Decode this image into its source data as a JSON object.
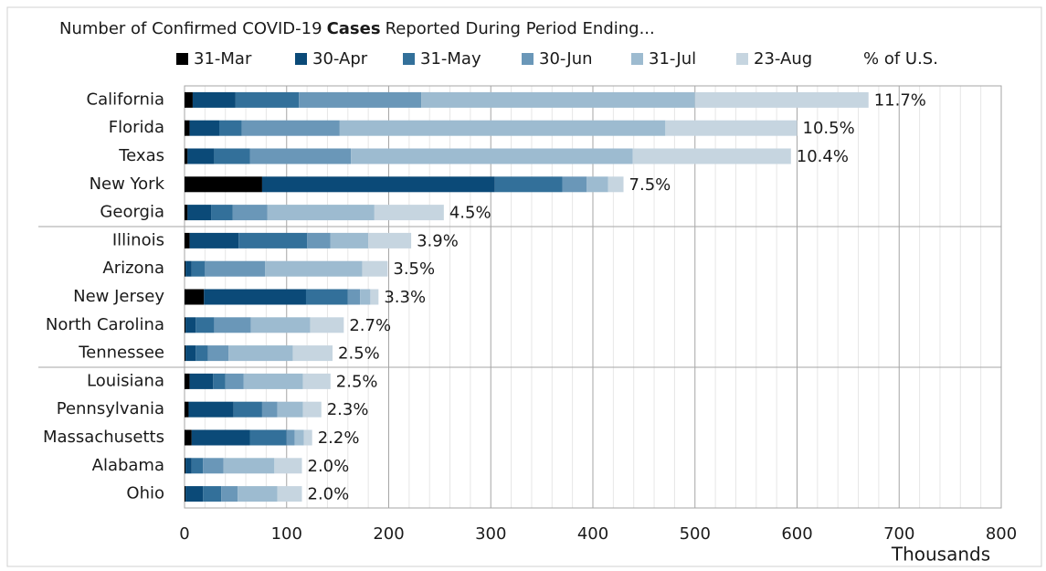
{
  "chart_data": {
    "type": "stacked_bar_horizontal",
    "title": [
      "Number of Confirmed COVID-19",
      "Cases",
      "Reported During Period Ending..."
    ],
    "x_label": "Thousands",
    "categories": [
      "California",
      "Florida",
      "Texas",
      "New York",
      "Georgia",
      "Illinois",
      "Arizona",
      "New Jersey",
      "North Carolina",
      "Tennessee",
      "Louisiana",
      "Pennsylvania",
      "Massachusetts",
      "Alabama",
      "Ohio"
    ],
    "series": [
      {
        "name": "31-Mar",
        "color": "#000000",
        "values": [
          8,
          5,
          3,
          76,
          3,
          5,
          1,
          19,
          1,
          1,
          5,
          4,
          7,
          1,
          1
        ]
      },
      {
        "name": "30-Apr",
        "color": "#0b4a78",
        "values": [
          42,
          29,
          26,
          228,
          23,
          48,
          6,
          100,
          10,
          10,
          23,
          44,
          57,
          6,
          17
        ]
      },
      {
        "name": "31-May",
        "color": "#33709a",
        "values": [
          62,
          22,
          35,
          66,
          21,
          67,
          13,
          41,
          18,
          12,
          12,
          28,
          36,
          11,
          18
        ]
      },
      {
        "name": "30-Jun",
        "color": "#6a97b8",
        "values": [
          120,
          96,
          99,
          24,
          34,
          23,
          59,
          12,
          36,
          20,
          18,
          15,
          8,
          20,
          16
        ]
      },
      {
        "name": "31-Jul",
        "color": "#9dbbd0",
        "values": [
          268,
          319,
          276,
          21,
          105,
          37,
          95,
          10,
          58,
          63,
          58,
          25,
          9,
          50,
          39
        ]
      },
      {
        "name": "23-Aug",
        "color": "#c6d5e0",
        "values": [
          170,
          129,
          155,
          15,
          68,
          42,
          25,
          8,
          33,
          39,
          27,
          18,
          8,
          27,
          24
        ]
      }
    ],
    "share": {
      "name": "% of U.S.",
      "values": [
        11.7,
        10.5,
        10.4,
        7.5,
        4.5,
        3.9,
        3.5,
        3.3,
        2.7,
        2.5,
        2.5,
        2.3,
        2.2,
        2.0,
        2.0
      ],
      "value_labels": [
        "11.7%",
        "10.5%",
        "10.4%",
        "7.5%",
        "4.5%",
        "3.9%",
        "3.5%",
        "3.3%",
        "2.7%",
        "2.5%",
        "2.5%",
        "2.3%",
        "2.2%",
        "2.0%",
        "2.0%"
      ]
    },
    "xlim": [
      0,
      800
    ],
    "xticks": [
      0,
      100,
      200,
      300,
      400,
      500,
      600,
      700,
      800
    ],
    "grid": true,
    "minor_grid_per_tick": 5,
    "group_size": 5
  }
}
